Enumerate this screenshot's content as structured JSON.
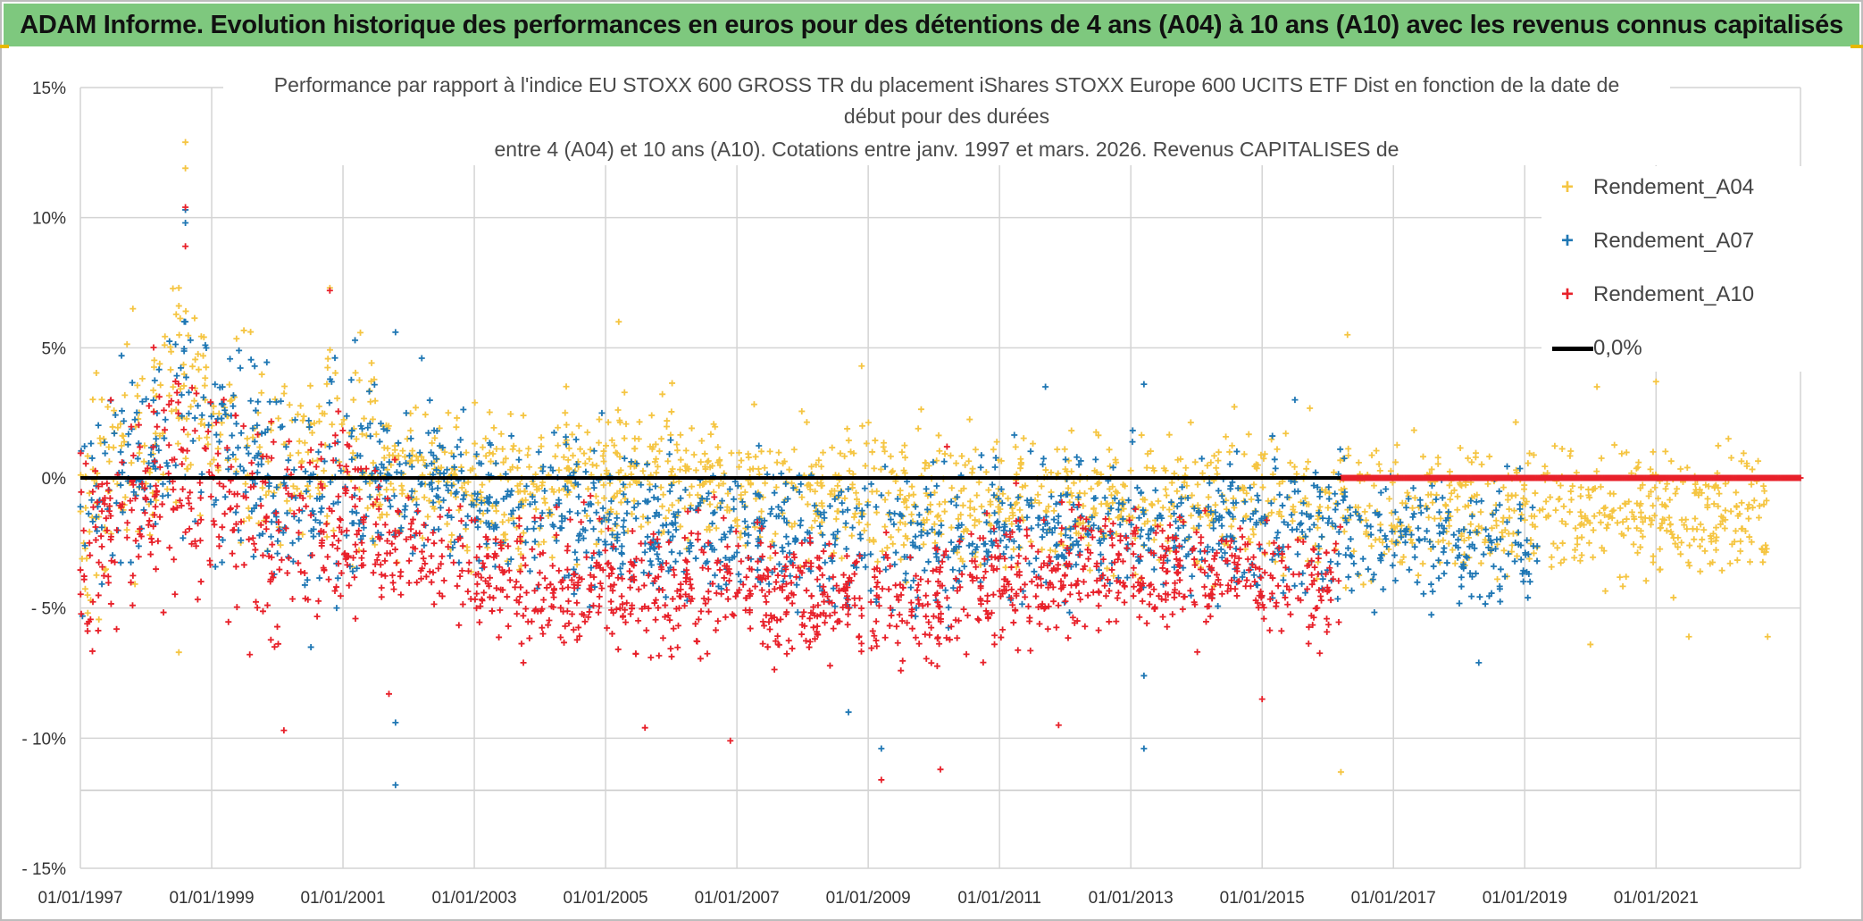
{
  "header": {
    "title": "ADAM Informe. Evolution historique des performances en euros pour des détentions de 4 ans (A04) à 10 ans (A10) avec les revenus connus capitalisés"
  },
  "chart_data": {
    "type": "scatter",
    "title_lines": [
      "Performance  par rapport à l'indice EU STOXX 600 GROSS TR  du placement iShares STOXX Europe 600 UCITS ETF Dist en fonction de la date de",
      "début pour des durées",
      "entre 4 (A04) et 10 ans (A10). Cotations entre janv. 1997 et mars. 2026. Revenus CAPITALISES de"
    ],
    "x_ticks": [
      "01/01/1997",
      "01/01/1999",
      "01/01/2001",
      "01/01/2003",
      "01/01/2005",
      "01/01/2007",
      "01/01/2009",
      "01/01/2011",
      "01/01/2013",
      "01/01/2015",
      "01/01/2017",
      "01/01/2019",
      "01/01/2021"
    ],
    "x_tick_years": [
      1997,
      1999,
      2001,
      2003,
      2005,
      2007,
      2009,
      2011,
      2013,
      2015,
      2017,
      2019,
      2021
    ],
    "xlim": [
      1997.0,
      2023.2
    ],
    "y_ticks": [
      "15%",
      "10%",
      "5%",
      "0%",
      "- 5%",
      "- 10%",
      "- 15%"
    ],
    "y_tick_values": [
      15,
      10,
      5,
      0,
      -5,
      -10,
      -15
    ],
    "extra_gridline": -12,
    "ylim": [
      -15,
      15
    ],
    "legend": {
      "position": "top-right",
      "entries": [
        "Rendement_A04",
        "Rendement_A07",
        "Rendement_A10",
        "0,0%"
      ]
    },
    "colors": {
      "A04": "#f5c542",
      "A07": "#1f77b4",
      "A10": "#e8212a",
      "zero": "#000000",
      "grid": "#d4d4d4"
    },
    "series": [
      {
        "name": "Rendement_A04",
        "key": "A04",
        "x_range": [
          1997.0,
          2022.7
        ],
        "profile": [
          [
            1997.0,
            -1.0
          ],
          [
            1998.0,
            0.5
          ],
          [
            1998.5,
            4.0
          ],
          [
            1999.2,
            1.5
          ],
          [
            2000.2,
            1.0
          ],
          [
            2001.0,
            0.5
          ],
          [
            2002.0,
            0.0
          ],
          [
            2004.0,
            -0.5
          ],
          [
            2005.5,
            0.5
          ],
          [
            2007.5,
            -0.5
          ],
          [
            2009.5,
            -1.0
          ],
          [
            2011.5,
            -0.8
          ],
          [
            2013.5,
            -1.0
          ],
          [
            2015.5,
            -0.8
          ],
          [
            2017.0,
            -1.2
          ],
          [
            2019.0,
            -1.0
          ],
          [
            2021.0,
            -1.3
          ],
          [
            2022.7,
            -1.5
          ]
        ],
        "spread": 2.3,
        "count": 1900,
        "outliers": [
          [
            1998.6,
            12.9
          ],
          [
            1998.6,
            11.9
          ],
          [
            1998.5,
            7.3
          ],
          [
            2000.8,
            7.3
          ],
          [
            1997.8,
            6.5
          ],
          [
            2005.2,
            6.0
          ],
          [
            2008.9,
            4.3
          ],
          [
            2016.3,
            5.5
          ],
          [
            2020.1,
            3.5
          ],
          [
            2021.0,
            3.7
          ],
          [
            2016.2,
            -11.3
          ],
          [
            2020.0,
            -6.4
          ],
          [
            2021.5,
            -6.1
          ],
          [
            2022.7,
            -6.1
          ],
          [
            1998.5,
            -6.7
          ]
        ]
      },
      {
        "name": "Rendement_A07",
        "key": "A07",
        "x_range": [
          1997.0,
          2019.2
        ],
        "profile": [
          [
            1997.0,
            -1.0
          ],
          [
            1998.0,
            1.0
          ],
          [
            1998.6,
            2.5
          ],
          [
            1999.5,
            0.5
          ],
          [
            2000.2,
            -1.0
          ],
          [
            2001.0,
            0.0
          ],
          [
            2002.0,
            0.0
          ],
          [
            2003.5,
            -1.2
          ],
          [
            2005.0,
            -1.5
          ],
          [
            2007.0,
            -2.0
          ],
          [
            2009.0,
            -2.5
          ],
          [
            2011.0,
            -2.0
          ],
          [
            2013.0,
            -2.0
          ],
          [
            2015.0,
            -2.0
          ],
          [
            2016.5,
            -2.0
          ],
          [
            2018.0,
            -2.5
          ],
          [
            2019.2,
            -2.7
          ]
        ],
        "spread": 2.4,
        "count": 1500,
        "outliers": [
          [
            1998.6,
            10.3
          ],
          [
            1998.6,
            9.8
          ],
          [
            1998.6,
            6.0
          ],
          [
            2001.8,
            5.6
          ],
          [
            2002.2,
            4.6
          ],
          [
            2001.8,
            -11.8
          ],
          [
            2001.8,
            -9.4
          ],
          [
            2013.2,
            3.6
          ],
          [
            2015.5,
            3.0
          ],
          [
            2011.7,
            3.5
          ],
          [
            2013.2,
            -10.4
          ],
          [
            2009.2,
            -10.4
          ],
          [
            2008.7,
            -9.0
          ],
          [
            2013.2,
            -7.6
          ],
          [
            2018.3,
            -7.1
          ]
        ]
      },
      {
        "name": "Rendement_A10",
        "key": "A10",
        "x_range": [
          1997.0,
          2016.2
        ],
        "profile": [
          [
            1997.0,
            -2.5
          ],
          [
            1998.0,
            -1.0
          ],
          [
            1998.6,
            0.5
          ],
          [
            1999.5,
            -1.5
          ],
          [
            2000.2,
            -3.0
          ],
          [
            2001.0,
            -1.5
          ],
          [
            2002.0,
            -2.5
          ],
          [
            2003.5,
            -4.0
          ],
          [
            2005.0,
            -4.2
          ],
          [
            2007.0,
            -4.0
          ],
          [
            2009.0,
            -5.0
          ],
          [
            2011.0,
            -4.0
          ],
          [
            2013.0,
            -3.5
          ],
          [
            2015.0,
            -4.0
          ],
          [
            2016.2,
            -4.5
          ]
        ],
        "spread": 2.2,
        "count": 1500,
        "outliers": [
          [
            1998.6,
            10.4
          ],
          [
            1998.6,
            8.9
          ],
          [
            2000.8,
            7.2
          ],
          [
            2000.1,
            -9.7
          ],
          [
            2001.7,
            -8.3
          ],
          [
            2005.6,
            -9.6
          ],
          [
            2006.9,
            -10.1
          ],
          [
            2009.2,
            -11.6
          ],
          [
            2010.1,
            -11.2
          ],
          [
            2011.9,
            -9.5
          ],
          [
            2015.0,
            -8.5
          ],
          [
            2010.2,
            1.2
          ]
        ]
      }
    ],
    "zero_line_value": 0,
    "zero_series_after": {
      "x_range": [
        2016.2,
        2023.2
      ],
      "value": 0
    }
  }
}
